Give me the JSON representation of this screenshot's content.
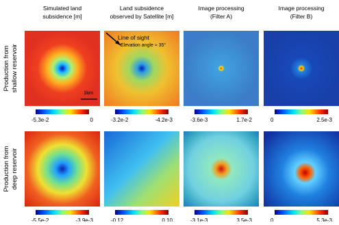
{
  "columns": [
    {
      "line1": "Simulated land",
      "line2": "subsidence [m]"
    },
    {
      "line1": "Land subsidence",
      "line2": "observed by Satellite [m]"
    },
    {
      "line1": "Image processing",
      "line2": "(Filter A)"
    },
    {
      "line1": "Image processing",
      "line2": "(Filter B)"
    }
  ],
  "rows": [
    {
      "line1": "Production from",
      "line2": "shallow reservoir",
      "colorbars": [
        {
          "min": "-5.3e-2",
          "max": "0"
        },
        {
          "min": "-3.2e-2",
          "max": "-4.2e-3"
        },
        {
          "min": "-3.6e-3",
          "max": "1.7e-2"
        },
        {
          "min": "0",
          "max": "2.5e-3"
        }
      ]
    },
    {
      "line1": "Production from",
      "line2": "deep reservoir",
      "colorbars": [
        {
          "min": "-5.5e-2",
          "max": "-3.9e-3"
        },
        {
          "min": "-0.12",
          "max": "0.10"
        },
        {
          "min": "-3.1e-3",
          "max": "3.5e-3"
        },
        {
          "min": "0",
          "max": "5.3e-3"
        }
      ]
    }
  ],
  "annotations": {
    "line_of_sight": "Line of sight",
    "elevation": "Elevation angle ≈ 35°",
    "scale": "1km"
  }
}
